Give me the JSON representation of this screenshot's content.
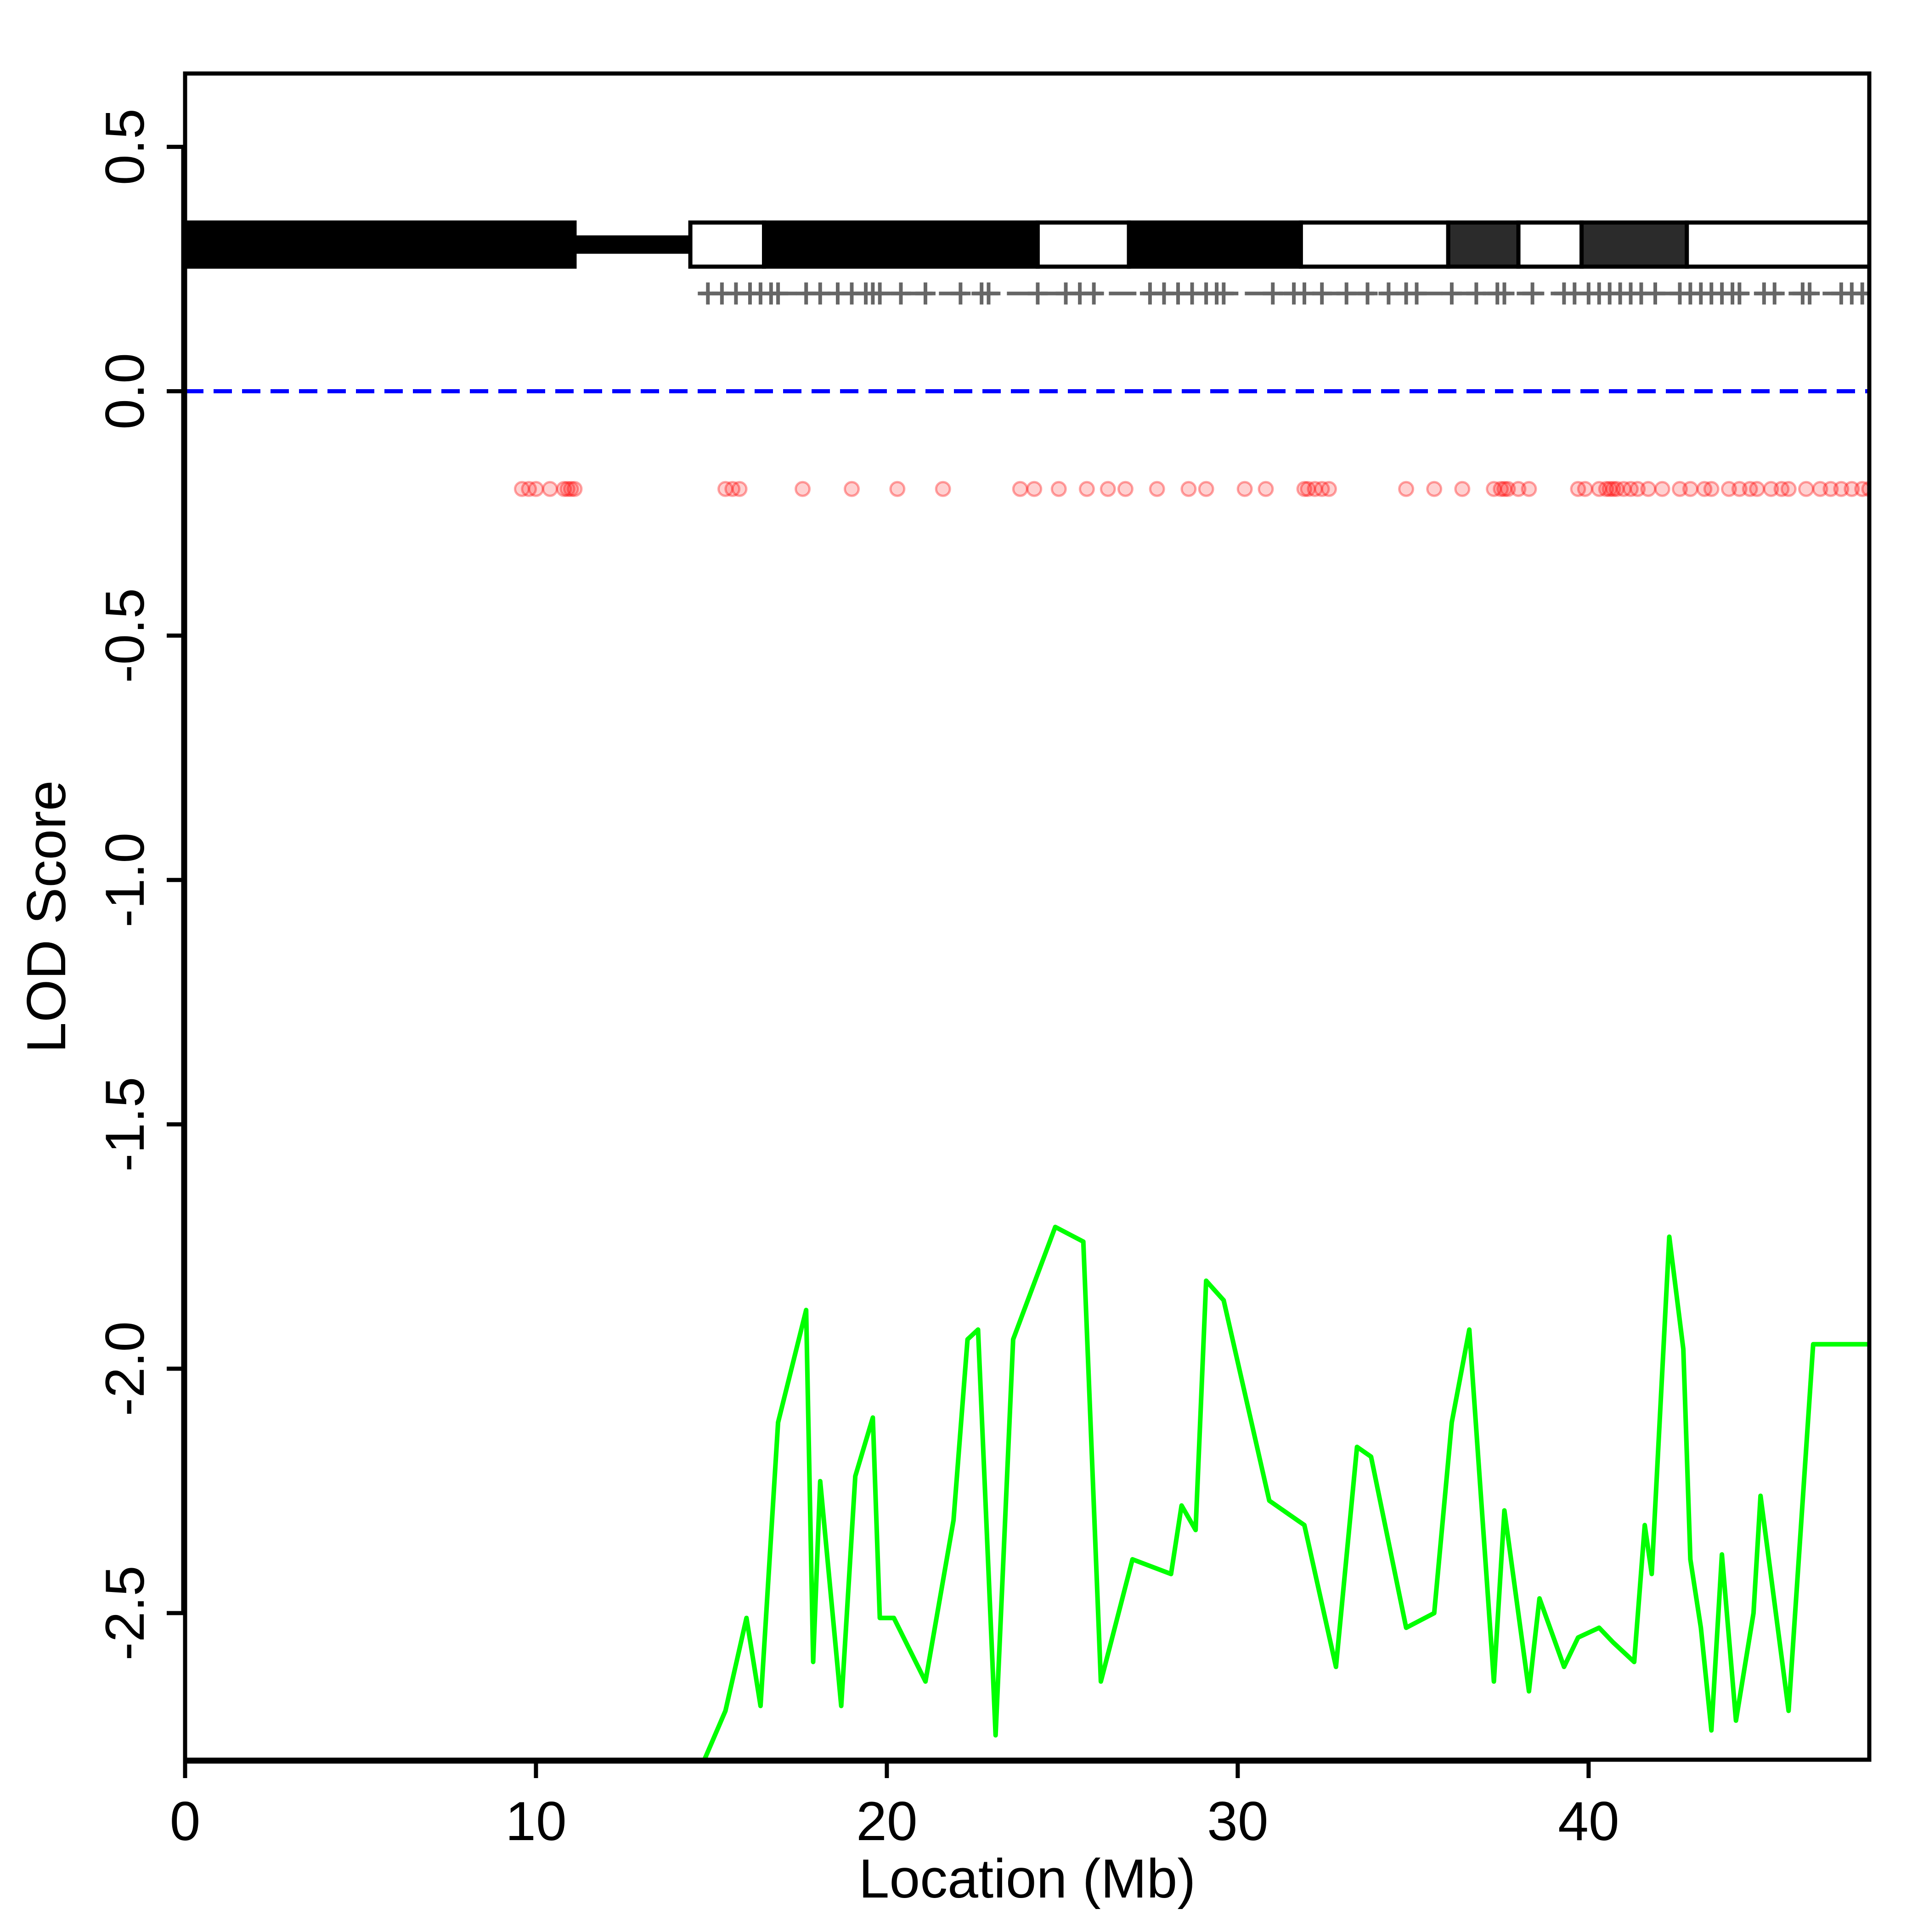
{
  "chart_data": {
    "type": "line",
    "title": "",
    "xlabel": "Location (Mb)",
    "ylabel": "LOD Score",
    "xlim": [
      0,
      48
    ],
    "ylim": [
      -2.8,
      0.65
    ],
    "xticks": [
      "0",
      "10",
      "20",
      "30",
      "40"
    ],
    "yticks": [
      "0.5",
      "0.0",
      "-0.5",
      "-1.0",
      "-1.5",
      "-2.0",
      "-2.5"
    ],
    "colors": {
      "lod_line": "#00ff00",
      "threshold": "#0000ff",
      "snps": "#ff0000",
      "markers": "#666666",
      "cytoband_dark": "#000000",
      "cytoband_gray": "#2b2b2b",
      "cytoband_light": "#ffffff"
    },
    "threshold": 0.0,
    "series": [
      {
        "x": [
          14.8,
          15.4,
          16.0,
          16.4,
          16.9,
          17.7,
          17.9,
          18.1,
          18.7,
          19.1,
          19.6,
          19.8,
          20.2,
          21.1,
          21.9,
          22.3,
          22.6,
          23.1,
          23.6,
          24.8,
          25.6,
          26.1,
          27.0,
          28.1,
          28.4,
          28.8,
          29.1,
          29.6,
          30.9,
          31.9,
          32.8,
          33.4,
          33.8,
          34.8,
          35.6,
          36.1,
          36.6,
          37.3,
          37.6,
          38.3,
          38.6,
          39.3,
          39.7,
          40.3,
          40.7,
          41.3,
          41.6,
          41.8,
          42.3,
          42.7,
          42.9,
          43.2,
          43.5,
          43.8,
          44.2,
          44.7,
          44.9,
          45.7,
          46.4,
          47.0,
          47.5,
          48.0
        ],
        "values": [
          -2.8,
          -2.7,
          -2.51,
          -2.69,
          -2.11,
          -1.88,
          -2.6,
          -2.23,
          -2.69,
          -2.22,
          -2.1,
          -2.51,
          -2.51,
          -2.64,
          -2.31,
          -1.94,
          -1.92,
          -2.75,
          -1.94,
          -1.71,
          -1.74,
          -2.64,
          -2.39,
          -2.42,
          -2.28,
          -2.33,
          -1.82,
          -1.86,
          -2.27,
          -2.32,
          -2.61,
          -2.16,
          -2.18,
          -2.53,
          -2.5,
          -2.11,
          -1.92,
          -2.64,
          -2.29,
          -2.66,
          -2.47,
          -2.61,
          -2.55,
          -2.53,
          -2.56,
          -2.6,
          -2.32,
          -2.42,
          -1.73,
          -1.96,
          -2.39,
          -2.53,
          -2.74,
          -2.38,
          -2.72,
          -2.5,
          -2.26,
          -2.7,
          -1.95,
          -1.95,
          -1.95,
          -1.95
        ]
      }
    ],
    "snp_y": -0.2,
    "snp_positions": [
      9.6,
      9.8,
      10.0,
      10.4,
      10.8,
      10.9,
      11.0,
      11.1,
      15.4,
      15.6,
      15.8,
      17.6,
      19.0,
      20.3,
      21.6,
      23.8,
      24.2,
      24.9,
      25.7,
      26.3,
      26.8,
      27.7,
      28.6,
      29.1,
      30.2,
      30.8,
      31.9,
      32.0,
      32.2,
      32.4,
      32.6,
      34.8,
      35.6,
      36.4,
      37.3,
      37.5,
      37.6,
      37.7,
      38.0,
      38.3,
      39.7,
      39.9,
      40.3,
      40.5,
      40.6,
      40.7,
      40.8,
      41.0,
      41.2,
      41.4,
      41.7,
      42.1,
      42.6,
      42.9,
      43.3,
      43.5,
      44.0,
      44.3,
      44.6,
      44.8,
      45.2,
      45.5,
      45.7,
      46.2,
      46.6,
      46.9,
      47.2,
      47.5,
      47.8,
      48.0
    ],
    "marker_y": 0.2,
    "marker_positions": [
      14.9,
      15.3,
      15.7,
      16.1,
      16.4,
      16.7,
      16.9,
      17.7,
      18.1,
      18.6,
      19.0,
      19.4,
      19.6,
      19.8,
      20.4,
      21.1,
      22.1,
      22.7,
      22.9,
      24.3,
      25.1,
      25.5,
      25.9,
      27.5,
      27.9,
      28.3,
      28.7,
      29.1,
      29.4,
      29.6,
      31.0,
      31.6,
      31.9,
      32.4,
      33.1,
      33.7,
      34.3,
      34.8,
      35.1,
      36.1,
      36.8,
      37.4,
      37.6,
      38.4,
      39.3,
      39.6,
      40.0,
      40.3,
      40.6,
      40.9,
      41.2,
      41.5,
      41.9,
      42.6,
      42.9,
      43.2,
      43.5,
      43.8,
      44.1,
      44.3,
      45.0,
      45.3,
      46.1,
      46.3,
      47.2,
      47.5,
      47.8
    ],
    "cytobands_y": 0.3,
    "cytobands": [
      {
        "start": 0,
        "end": 11.1,
        "stain": "dark"
      },
      {
        "start": 11.1,
        "end": 14.4,
        "stain": "centromere"
      },
      {
        "start": 14.4,
        "end": 16.5,
        "stain": "light"
      },
      {
        "start": 16.5,
        "end": 24.3,
        "stain": "dark"
      },
      {
        "start": 24.3,
        "end": 26.9,
        "stain": "light"
      },
      {
        "start": 26.9,
        "end": 31.8,
        "stain": "dark"
      },
      {
        "start": 31.8,
        "end": 36.0,
        "stain": "light"
      },
      {
        "start": 36.0,
        "end": 38.0,
        "stain": "gray"
      },
      {
        "start": 38.0,
        "end": 39.8,
        "stain": "light"
      },
      {
        "start": 39.8,
        "end": 42.8,
        "stain": "gray"
      },
      {
        "start": 42.8,
        "end": 48.0,
        "stain": "light"
      }
    ]
  }
}
